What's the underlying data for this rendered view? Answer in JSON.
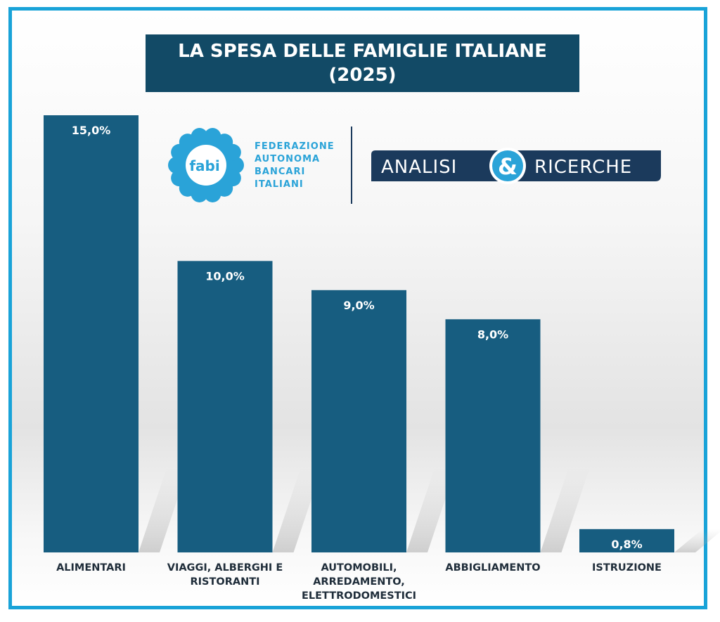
{
  "title_line1": "LA SPESA DELLE FAMIGLIE ITALIANE",
  "title_line2": "(2025)",
  "logo": {
    "mark": "fabi",
    "lines": [
      "FEDERAZIONE",
      "AUTONOMA",
      "BANCARI",
      "ITALIANI"
    ],
    "badge_left": "ANALISI",
    "badge_symbol": "&",
    "badge_right": "RICERCHE"
  },
  "colors": {
    "bar": "#175d80",
    "title_bg": "#124a66",
    "frame": "#19a3d8",
    "logo": "#2aa3d8",
    "badge": "#1b3a5c"
  },
  "chart_data": {
    "type": "bar",
    "title": "LA SPESA DELLE FAMIGLIE ITALIANE (2025)",
    "categories": [
      [
        "ALIMENTARI"
      ],
      [
        "VIAGGI, ALBERGHI E",
        "RISTORANTI"
      ],
      [
        "AUTOMOBILI,",
        "ARREDAMENTO,",
        "ELETTRODOMESTICI"
      ],
      [
        "ABBIGLIAMENTO"
      ],
      [
        "ISTRUZIONE"
      ]
    ],
    "values": [
      15.0,
      10.0,
      9.0,
      8.0,
      0.8
    ],
    "value_labels": [
      "15,0%",
      "10,0%",
      "9,0%",
      "8,0%",
      "0,8%"
    ],
    "ylim": [
      0,
      15
    ],
    "grid": false,
    "legend": "none"
  }
}
